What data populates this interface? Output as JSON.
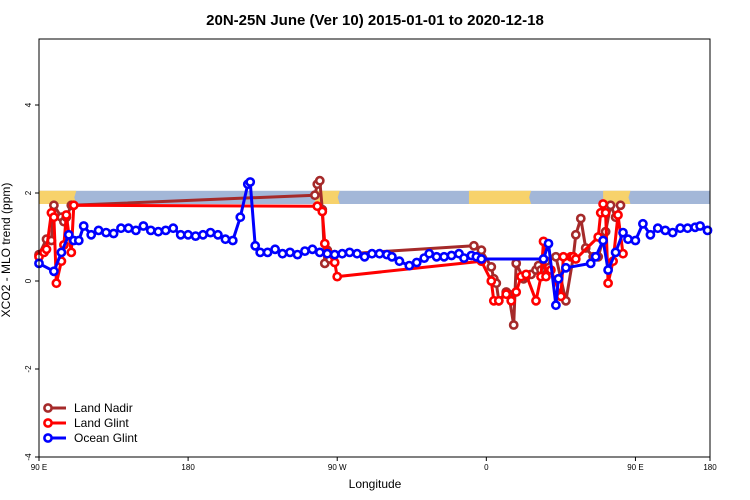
{
  "chart_data": {
    "type": "line",
    "title": "20N-25N June (Ver 10)   2015-01-01 to 2020-12-18",
    "xlabel": "Longitude",
    "ylabel": "XCO2 - MLO trend (ppm)",
    "xlim": [
      -90,
      180
    ],
    "ylim": [
      -4,
      5.5
    ],
    "xticks": [
      {
        "value": -90,
        "label": "90 E"
      },
      {
        "value": -30,
        "label": "180"
      },
      {
        "value": 30,
        "label": "90 W"
      },
      {
        "value": 90,
        "label": "0"
      },
      {
        "value": 150,
        "label": "90 E"
      },
      {
        "value": 180,
        "label": "180"
      }
    ],
    "yticks": [
      -4,
      -2,
      0,
      2,
      4
    ],
    "grid": false,
    "legend": "bottom-left",
    "map_band": {
      "y_range": [
        1.75,
        2.05
      ],
      "ocean_color": "#a3b7d8",
      "land_color": "#f7d26b"
    },
    "series": [
      {
        "name": "Land Nadir",
        "color": "#a52a2a",
        "points": [
          [
            -90,
            0.6
          ],
          [
            -87,
            0.95
          ],
          [
            -85,
            0.92
          ],
          [
            -84,
            1.72
          ],
          [
            -81,
            1.45
          ],
          [
            -80,
            1.35
          ],
          [
            -79,
            1.45
          ],
          [
            -77,
            1.72
          ],
          [
            21,
            1.95
          ],
          [
            22,
            2.2
          ],
          [
            23,
            2.28
          ],
          [
            24,
            1.62
          ],
          [
            25,
            0.4
          ],
          [
            26,
            0.7
          ],
          [
            27,
            0.5
          ],
          [
            29,
            0.6
          ],
          [
            85,
            0.8
          ],
          [
            88,
            0.7
          ],
          [
            92,
            0.32
          ],
          [
            93,
            0.05
          ],
          [
            94,
            -0.05
          ],
          [
            95,
            -0.45
          ],
          [
            98,
            -0.25
          ],
          [
            99,
            -0.3
          ],
          [
            101,
            -1.0
          ],
          [
            102,
            0.4
          ],
          [
            105,
            0.05
          ],
          [
            106,
            0.1
          ],
          [
            108,
            0.15
          ],
          [
            110,
            0.25
          ],
          [
            111,
            0.35
          ],
          [
            112,
            0.25
          ],
          [
            114,
            0.45
          ],
          [
            118,
            0.55
          ],
          [
            122,
            -0.45
          ],
          [
            125,
            0.55
          ],
          [
            126,
            1.05
          ],
          [
            128,
            1.42
          ],
          [
            130,
            0.75
          ],
          [
            133,
            0.55
          ],
          [
            135,
            0.55
          ],
          [
            137,
            0.95
          ],
          [
            138,
            1.12
          ],
          [
            140,
            1.72
          ],
          [
            142,
            1.45
          ],
          [
            144,
            1.72
          ]
        ]
      },
      {
        "name": "Land Glint",
        "color": "#ff0000",
        "points": [
          [
            -90,
            0.55
          ],
          [
            -88,
            0.65
          ],
          [
            -87,
            0.72
          ],
          [
            -85,
            1.55
          ],
          [
            -84,
            1.45
          ],
          [
            -83,
            -0.05
          ],
          [
            -81,
            0.45
          ],
          [
            -80,
            0.82
          ],
          [
            -79,
            1.5
          ],
          [
            -77,
            0.65
          ],
          [
            -76,
            1.72
          ],
          [
            22,
            1.7
          ],
          [
            24,
            1.58
          ],
          [
            25,
            0.85
          ],
          [
            26,
            0.65
          ],
          [
            29,
            0.42
          ],
          [
            30,
            0.1
          ],
          [
            88,
            0.45
          ],
          [
            92,
            0.0
          ],
          [
            93,
            -0.45
          ],
          [
            95,
            -0.45
          ],
          [
            98,
            -0.3
          ],
          [
            100,
            -0.45
          ],
          [
            102,
            -0.25
          ],
          [
            104,
            0.1
          ],
          [
            106,
            0.15
          ],
          [
            110,
            -0.45
          ],
          [
            112,
            0.1
          ],
          [
            113,
            0.9
          ],
          [
            114,
            0.1
          ],
          [
            116,
            0.25
          ],
          [
            120,
            -0.35
          ],
          [
            121,
            0.55
          ],
          [
            124,
            0.55
          ],
          [
            125,
            0.55
          ],
          [
            126,
            0.5
          ],
          [
            135,
            1.0
          ],
          [
            136,
            1.55
          ],
          [
            137,
            1.75
          ],
          [
            138,
            1.55
          ],
          [
            139,
            -0.05
          ],
          [
            141,
            0.45
          ],
          [
            143,
            1.5
          ],
          [
            145,
            0.62
          ]
        ]
      },
      {
        "name": "Ocean Glint",
        "color": "#0000ff",
        "points": [
          [
            -90,
            0.4
          ],
          [
            -84,
            0.22
          ],
          [
            -81,
            0.65
          ],
          [
            -78,
            1.05
          ],
          [
            -76,
            0.92
          ],
          [
            -74,
            0.92
          ],
          [
            -72,
            1.25
          ],
          [
            -69,
            1.05
          ],
          [
            -66,
            1.15
          ],
          [
            -63,
            1.1
          ],
          [
            -60,
            1.08
          ],
          [
            -57,
            1.2
          ],
          [
            -54,
            1.2
          ],
          [
            -51,
            1.15
          ],
          [
            -48,
            1.25
          ],
          [
            -45,
            1.15
          ],
          [
            -42,
            1.12
          ],
          [
            -39,
            1.15
          ],
          [
            -36,
            1.2
          ],
          [
            -33,
            1.05
          ],
          [
            -30,
            1.05
          ],
          [
            -27,
            1.02
          ],
          [
            -24,
            1.05
          ],
          [
            -21,
            1.1
          ],
          [
            -18,
            1.05
          ],
          [
            -15,
            0.95
          ],
          [
            -12,
            0.92
          ],
          [
            -9,
            1.45
          ],
          [
            -6,
            2.2
          ],
          [
            -5,
            2.25
          ],
          [
            -3,
            0.8
          ],
          [
            -1,
            0.65
          ],
          [
            2,
            0.65
          ],
          [
            5,
            0.72
          ],
          [
            8,
            0.62
          ],
          [
            11,
            0.65
          ],
          [
            14,
            0.6
          ],
          [
            17,
            0.68
          ],
          [
            20,
            0.72
          ],
          [
            23,
            0.65
          ],
          [
            26,
            0.62
          ],
          [
            29,
            0.6
          ],
          [
            32,
            0.62
          ],
          [
            35,
            0.65
          ],
          [
            38,
            0.62
          ],
          [
            41,
            0.55
          ],
          [
            44,
            0.62
          ],
          [
            47,
            0.62
          ],
          [
            50,
            0.6
          ],
          [
            52,
            0.55
          ],
          [
            55,
            0.45
          ],
          [
            59,
            0.35
          ],
          [
            62,
            0.42
          ],
          [
            65,
            0.52
          ],
          [
            67,
            0.62
          ],
          [
            70,
            0.55
          ],
          [
            73,
            0.55
          ],
          [
            76,
            0.58
          ],
          [
            79,
            0.62
          ],
          [
            81,
            0.52
          ],
          [
            84,
            0.58
          ],
          [
            86,
            0.55
          ],
          [
            88,
            0.5
          ],
          [
            113,
            0.5
          ],
          [
            115,
            0.85
          ],
          [
            118,
            -0.55
          ],
          [
            119,
            0.05
          ],
          [
            122,
            0.3
          ],
          [
            132,
            0.4
          ],
          [
            134,
            0.55
          ],
          [
            137,
            0.92
          ],
          [
            139,
            0.25
          ],
          [
            142,
            0.65
          ],
          [
            145,
            1.1
          ],
          [
            147,
            0.95
          ],
          [
            150,
            0.92
          ],
          [
            153,
            1.3
          ],
          [
            156,
            1.05
          ],
          [
            159,
            1.2
          ],
          [
            162,
            1.15
          ],
          [
            165,
            1.1
          ],
          [
            168,
            1.2
          ],
          [
            171,
            1.2
          ],
          [
            174,
            1.22
          ],
          [
            176,
            1.25
          ],
          [
            179,
            1.15
          ]
        ]
      }
    ]
  }
}
